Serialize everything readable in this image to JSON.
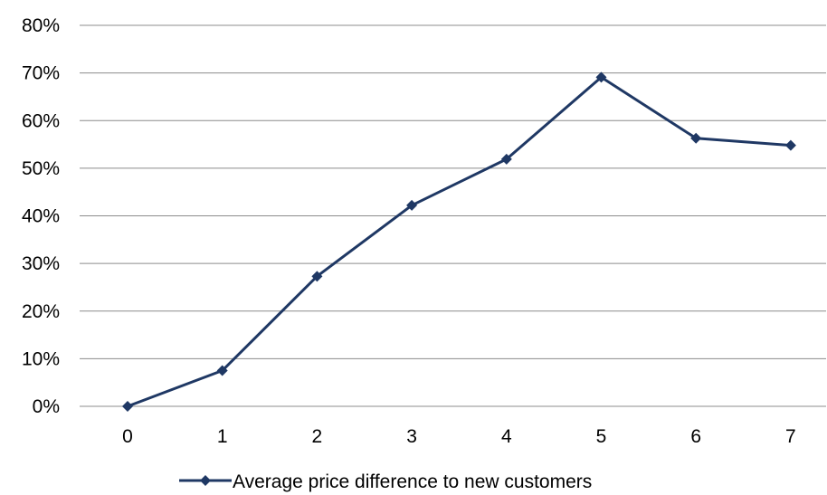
{
  "chart_data": {
    "type": "line",
    "x": [
      0,
      1,
      2,
      3,
      4,
      5,
      6,
      7
    ],
    "series": [
      {
        "name": "Average price difference to new customers",
        "values": [
          0.0,
          7.5,
          27.3,
          42.2,
          51.9,
          69.1,
          56.3,
          54.8
        ],
        "color": "#1f3864",
        "marker": "diamond"
      }
    ],
    "x_ticks": [
      "0",
      "1",
      "2",
      "3",
      "4",
      "5",
      "6",
      "7"
    ],
    "y_ticks": [
      "0%",
      "10%",
      "20%",
      "30%",
      "40%",
      "50%",
      "60%",
      "70%",
      "80%"
    ],
    "ylim": [
      0,
      80
    ],
    "y_unit": "%",
    "grid": "horizontal",
    "legend_position": "bottom",
    "title": "",
    "xlabel": "",
    "ylabel": ""
  }
}
